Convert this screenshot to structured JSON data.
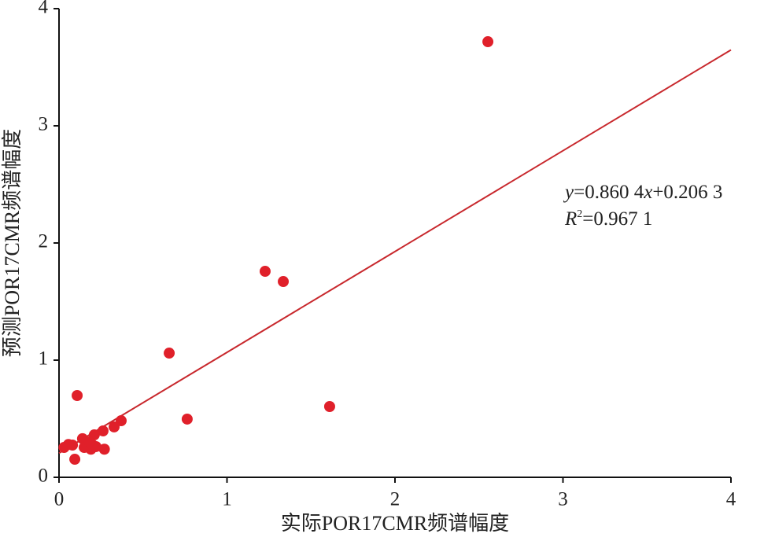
{
  "chart_data": {
    "type": "scatter",
    "x_label": "实际POR17CMR频谱幅度",
    "y_label": "预测POR17CMR频谱幅度",
    "xlim": [
      0,
      4
    ],
    "ylim": [
      0,
      4
    ],
    "xticks": [
      0,
      1,
      2,
      3,
      4
    ],
    "yticks": [
      0,
      1,
      2,
      3,
      4
    ],
    "grid": false,
    "series": [
      {
        "color": "#e0202a",
        "x": [
          2.553,
          1.227,
          1.335,
          0.656,
          0.763,
          1.611,
          0.108,
          0.37,
          0.328,
          0.262,
          0.21,
          0.14,
          0.27,
          0.03,
          0.056,
          0.08,
          0.094,
          0.15,
          0.19,
          0.2,
          0.22,
          0.18
        ],
        "values": [
          3.718,
          1.758,
          1.671,
          1.06,
          0.497,
          0.604,
          0.698,
          0.483,
          0.43,
          0.396,
          0.362,
          0.33,
          0.24,
          0.255,
          0.28,
          0.275,
          0.154,
          0.255,
          0.24,
          0.275,
          0.262,
          0.302
        ]
      }
    ],
    "trendline": {
      "slope": 0.8604,
      "intercept": 0.2063,
      "color": "#c8282d"
    },
    "annotations": [
      [
        {
          "text": "y",
          "italic": true
        },
        {
          "text": "=0.860 4"
        },
        {
          "text": "x",
          "italic": true
        },
        {
          "text": "+0.206 3"
        }
      ],
      [
        {
          "text": "R",
          "italic": true
        },
        {
          "text": "2",
          "sup": true
        },
        {
          "text": "=0.967 1"
        }
      ]
    ]
  }
}
